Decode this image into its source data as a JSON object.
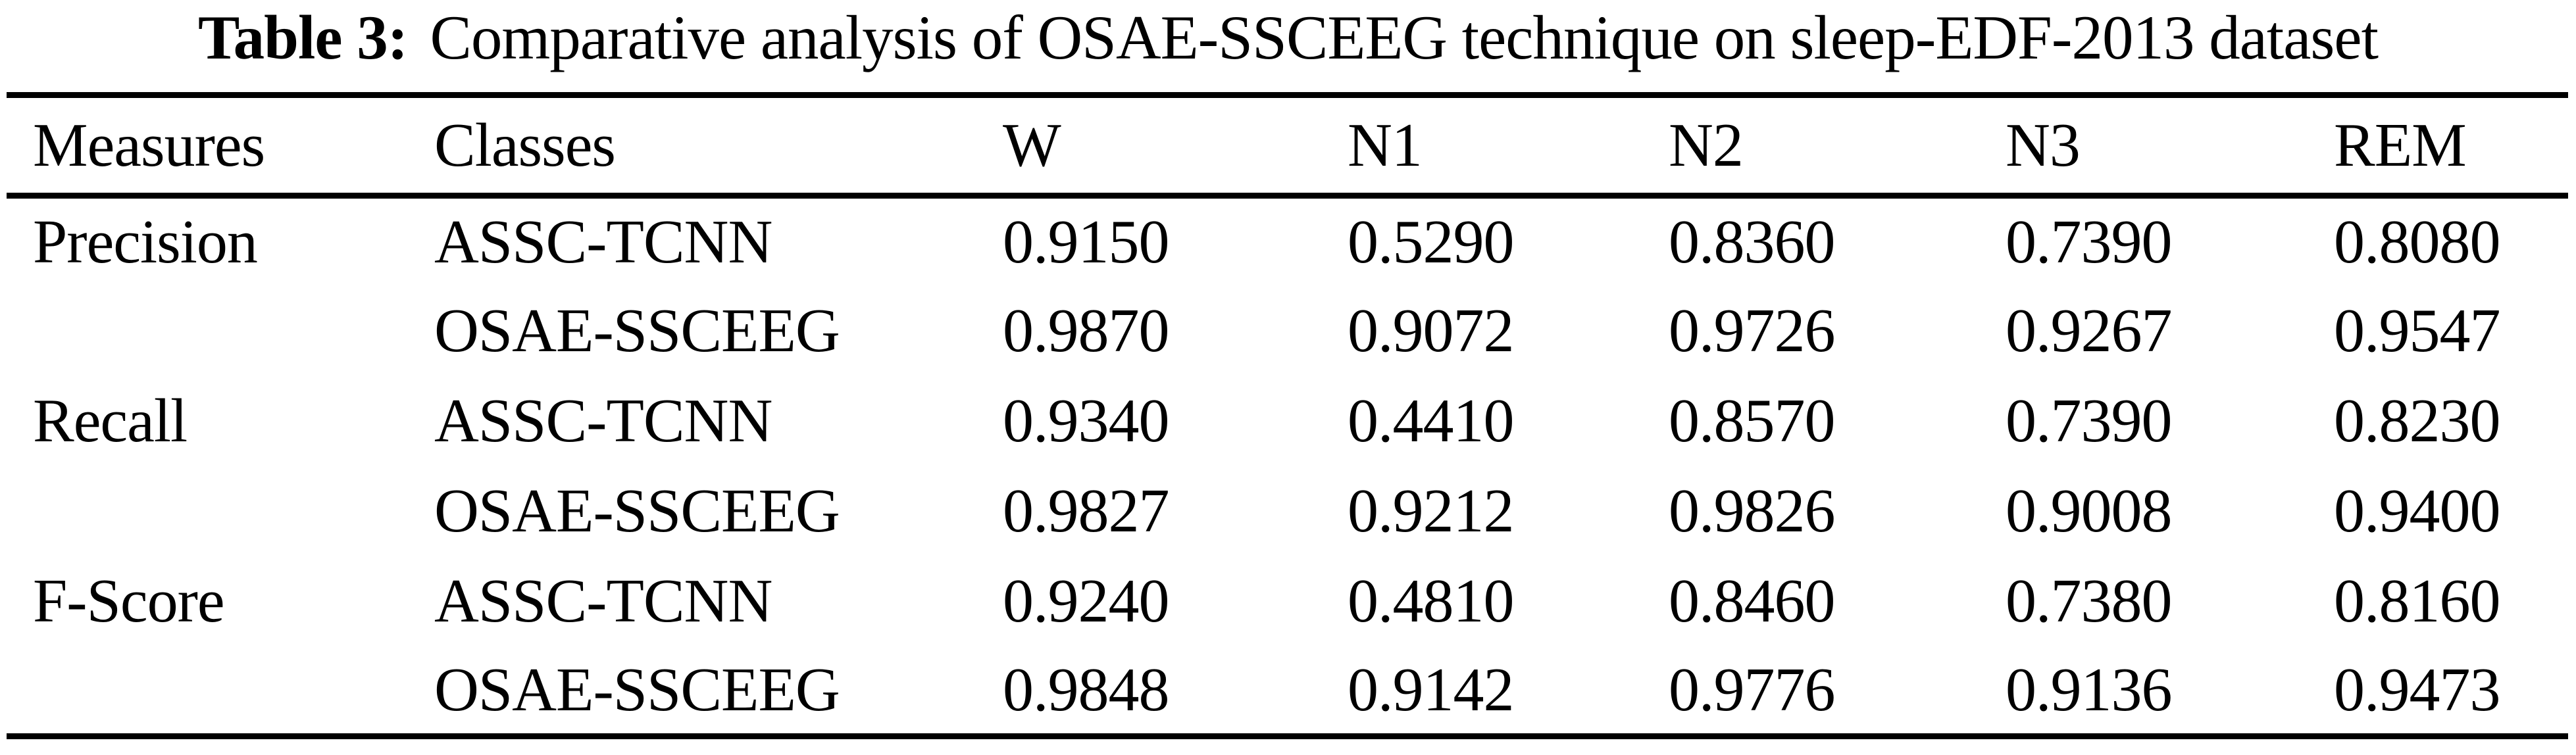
{
  "caption": {
    "label": "Table 3:",
    "text": "Comparative analysis of OSAE-SSCEEG technique on sleep-EDF-2013 dataset"
  },
  "table": {
    "columns": [
      "Measures",
      "Classes",
      "W",
      "N1",
      "N2",
      "N3",
      "REM"
    ],
    "rows": [
      [
        "Precision",
        "ASSC-TCNN",
        "0.9150",
        "0.5290",
        "0.8360",
        "0.7390",
        "0.8080"
      ],
      [
        "",
        "OSAE-SSCEEG",
        "0.9870",
        "0.9072",
        "0.9726",
        "0.9267",
        "0.9547"
      ],
      [
        "Recall",
        "ASSC-TCNN",
        "0.9340",
        "0.4410",
        "0.8570",
        "0.7390",
        "0.8230"
      ],
      [
        "",
        "OSAE-SSCEEG",
        "0.9827",
        "0.9212",
        "0.9826",
        "0.9008",
        "0.9400"
      ],
      [
        "F-Score",
        "ASSC-TCNN",
        "0.9240",
        "0.4810",
        "0.8460",
        "0.7380",
        "0.8160"
      ],
      [
        "",
        "OSAE-SSCEEG",
        "0.9848",
        "0.9142",
        "0.9776",
        "0.9136",
        "0.9473"
      ]
    ]
  },
  "colors": {
    "background": "#ffffff",
    "text": "#000000",
    "rule": "#000000"
  }
}
